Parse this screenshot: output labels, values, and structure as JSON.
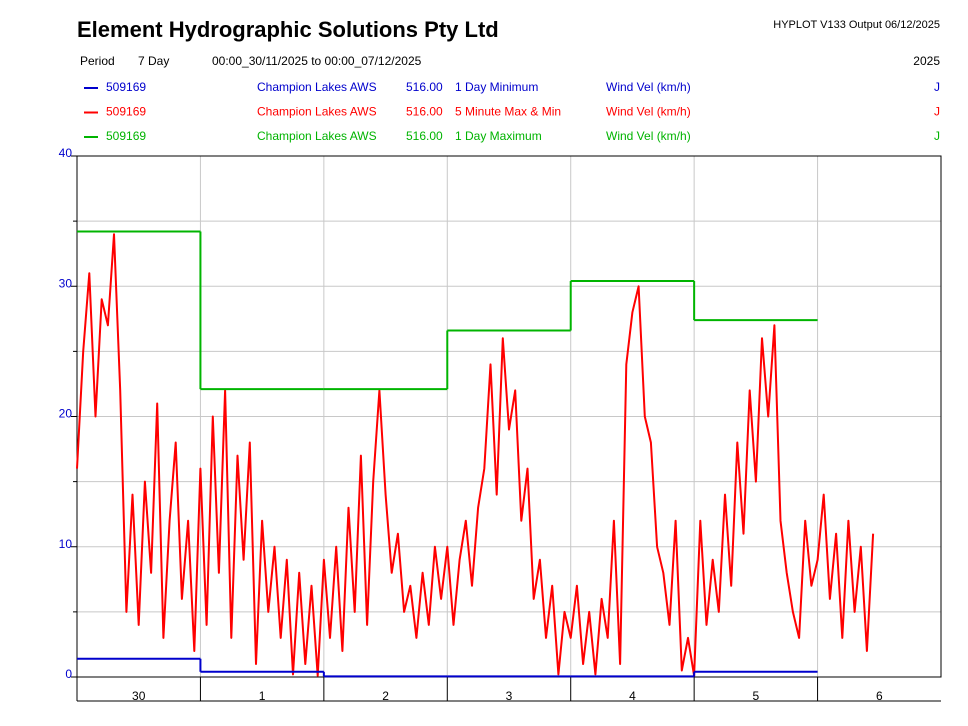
{
  "header": {
    "title": "Element Hydrographic Solutions Pty Ltd",
    "version": "HYPLOT V133  Output 06/12/2025",
    "period_label": "Period",
    "period": "7 Day",
    "range": "00:00_30/11/2025 to 00:00_07/12/2025",
    "year": "2025"
  },
  "chart_data": {
    "type": "line",
    "categories": [
      "30",
      "1",
      "2",
      "3",
      "4",
      "5",
      "6"
    ],
    "xlim": [
      0,
      7
    ],
    "ylim": [
      0,
      40
    ],
    "yticks": [
      0,
      10,
      20,
      30,
      40
    ],
    "minor_yticks": [
      5,
      15,
      25,
      35
    ],
    "grid": true,
    "series": [
      {
        "station": "509169",
        "site": "Champion Lakes AWS",
        "varnum": "516.00",
        "name": "1 Day Minimum",
        "unit": "Wind Vel (km/h)",
        "flag": "J",
        "color": "#0000cc",
        "step": true,
        "x": [
          0,
          1,
          2,
          3,
          4,
          5
        ],
        "values": [
          1.4,
          0.4,
          0.05,
          0.05,
          0.05,
          0.4
        ]
      },
      {
        "station": "509169",
        "site": "Champion Lakes AWS",
        "varnum": "516.00",
        "name": "5 Minute Max & Min",
        "unit": "Wind Vel (km/h)",
        "flag": "J",
        "color": "#ff0000",
        "step": false,
        "x": [
          0,
          0.05,
          0.1,
          0.15,
          0.2,
          0.25,
          0.3,
          0.35,
          0.4,
          0.45,
          0.5,
          0.55,
          0.6,
          0.65,
          0.7,
          0.75,
          0.8,
          0.85,
          0.9,
          0.95,
          1,
          1.05,
          1.1,
          1.15,
          1.2,
          1.25,
          1.3,
          1.35,
          1.4,
          1.45,
          1.5,
          1.55,
          1.6,
          1.65,
          1.7,
          1.75,
          1.8,
          1.85,
          1.9,
          1.95,
          2,
          2.05,
          2.1,
          2.15,
          2.2,
          2.25,
          2.3,
          2.35,
          2.4,
          2.45,
          2.5,
          2.55,
          2.6,
          2.65,
          2.7,
          2.75,
          2.8,
          2.85,
          2.9,
          2.95,
          3,
          3.05,
          3.1,
          3.15,
          3.2,
          3.25,
          3.3,
          3.35,
          3.4,
          3.45,
          3.5,
          3.55,
          3.6,
          3.65,
          3.7,
          3.75,
          3.8,
          3.85,
          3.9,
          3.95,
          4,
          4.05,
          4.1,
          4.15,
          4.2,
          4.25,
          4.3,
          4.35,
          4.4,
          4.45,
          4.5,
          4.55,
          4.6,
          4.65,
          4.7,
          4.75,
          4.8,
          4.85,
          4.9,
          4.95,
          5,
          5.05,
          5.1,
          5.15,
          5.2,
          5.25,
          5.3,
          5.35,
          5.4,
          5.45,
          5.5,
          5.55,
          5.6,
          5.65,
          5.7,
          5.75,
          5.8,
          5.85,
          5.9,
          5.95,
          6,
          6.05,
          6.1,
          6.15,
          6.2,
          6.25,
          6.3,
          6.35,
          6.4,
          6.45
        ],
        "values": [
          16,
          25,
          31,
          20,
          29,
          27,
          34,
          22,
          5,
          14,
          4,
          15,
          8,
          21,
          3,
          12,
          18,
          6,
          12,
          2,
          16,
          4,
          20,
          8,
          22,
          3,
          17,
          9,
          18,
          1,
          12,
          5,
          10,
          3,
          9,
          0.2,
          8,
          1,
          7,
          0.1,
          9,
          3,
          10,
          2,
          13,
          5,
          17,
          4,
          15,
          22,
          14,
          8,
          11,
          5,
          7,
          3,
          8,
          4,
          10,
          6,
          10,
          4,
          9,
          12,
          7,
          13,
          16,
          24,
          14,
          26,
          19,
          22,
          12,
          16,
          6,
          9,
          3,
          7,
          0.2,
          5,
          3,
          7,
          1,
          5,
          0.2,
          6,
          3,
          12,
          1,
          24,
          28,
          30,
          20,
          18,
          10,
          8,
          4,
          12,
          0.5,
          3,
          0.1,
          12,
          4,
          9,
          5,
          14,
          7,
          18,
          11,
          22,
          15,
          26,
          20,
          27,
          12,
          8,
          5,
          3,
          12,
          7,
          9,
          14,
          6,
          11,
          3,
          12,
          5,
          10,
          2,
          11
        ]
      },
      {
        "station": "509169",
        "site": "Champion Lakes AWS",
        "varnum": "516.00",
        "name": "1 Day Maximum",
        "unit": "Wind Vel (km/h)",
        "flag": "J",
        "color": "#00b400",
        "step": true,
        "x": [
          0,
          1,
          2,
          3,
          4,
          5
        ],
        "values": [
          34.2,
          22.1,
          22.1,
          26.6,
          30.4,
          27.4
        ]
      }
    ]
  }
}
